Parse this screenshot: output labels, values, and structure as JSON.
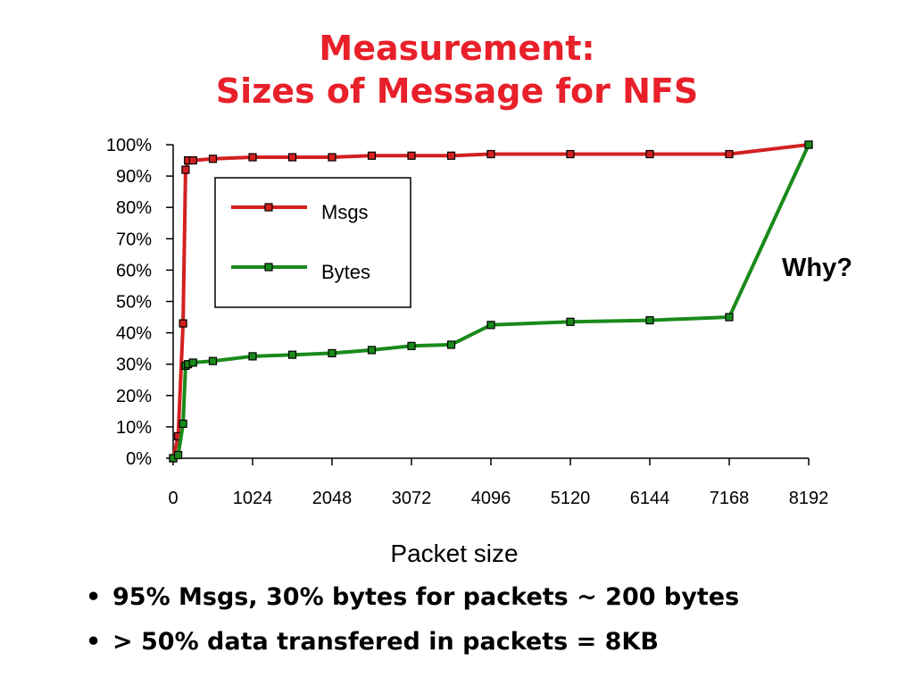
{
  "slide": {
    "title_line1": "Measurement:",
    "title_line2": "Sizes of Message for NFS",
    "annotation": "Why?",
    "bullets": [
      "95% Msgs, 30% bytes for packets ~ 200 bytes",
      "> 50% data transfered in packets = 8KB"
    ]
  },
  "chart_data": {
    "type": "line",
    "title": "",
    "xlabel": "Packet size",
    "ylabel": "",
    "xlim": [
      0,
      8192
    ],
    "ylim": [
      0,
      100
    ],
    "x_ticks": [
      0,
      1024,
      2048,
      3072,
      4096,
      5120,
      6144,
      7168,
      8192
    ],
    "y_ticks": [
      "0%",
      "10%",
      "20%",
      "30%",
      "40%",
      "50%",
      "60%",
      "70%",
      "80%",
      "90%",
      "100%"
    ],
    "legend": {
      "placement": "upper-left",
      "entries": [
        "Msgs",
        "Bytes"
      ]
    },
    "annotation": "Why?",
    "grid": false,
    "series": [
      {
        "name": "Msgs",
        "color": "#d42020",
        "x": [
          0,
          64,
          128,
          160,
          192,
          256,
          512,
          1024,
          1536,
          2048,
          2560,
          3072,
          3584,
          4096,
          5120,
          6144,
          7168,
          8192
        ],
        "y": [
          0,
          7,
          43,
          92,
          95,
          95,
          95.5,
          96,
          96,
          96,
          96.5,
          96.5,
          96.5,
          97,
          97,
          97,
          97,
          100
        ]
      },
      {
        "name": "Bytes",
        "color": "#1a8a1a",
        "x": [
          0,
          64,
          128,
          160,
          192,
          256,
          512,
          1024,
          1536,
          2048,
          2560,
          3072,
          3584,
          4096,
          5120,
          6144,
          7168,
          8192
        ],
        "y": [
          0,
          1,
          11,
          29.5,
          30,
          30.5,
          31,
          32.5,
          33,
          33.5,
          34.5,
          35.8,
          36.2,
          42.5,
          43.5,
          44,
          45,
          100
        ]
      }
    ]
  }
}
